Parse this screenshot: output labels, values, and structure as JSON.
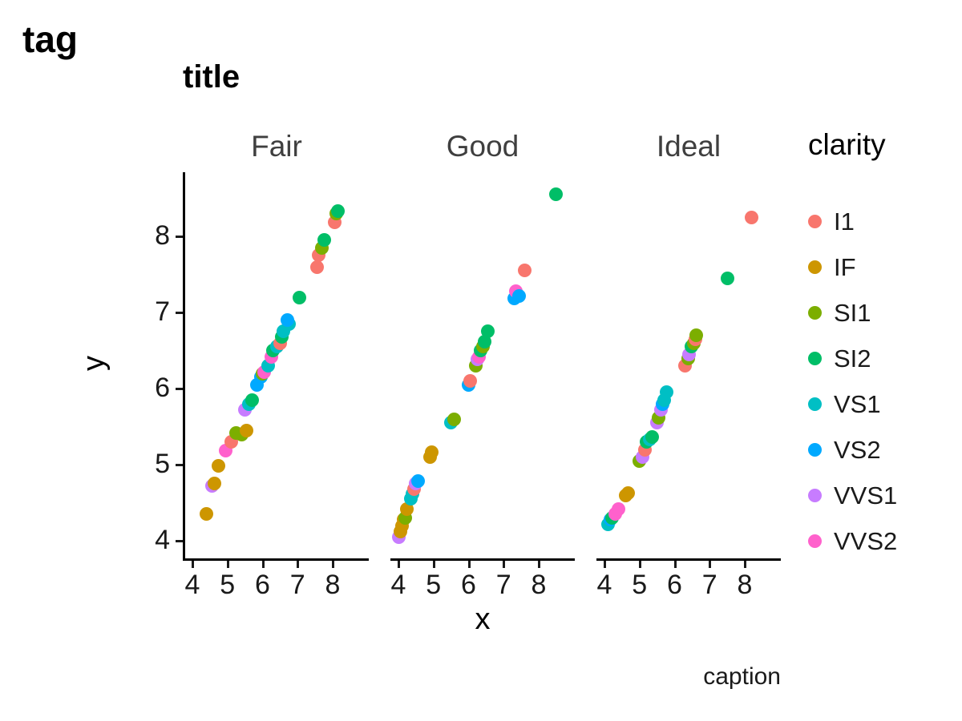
{
  "tag": "tag",
  "title": "title",
  "caption": "caption",
  "axes": {
    "x_label": "x",
    "y_label": "y",
    "x_ticks": [
      4,
      5,
      6,
      7,
      8
    ],
    "y_ticks": [
      4,
      5,
      6,
      7,
      8
    ]
  },
  "legend": {
    "title": "clarity",
    "position": "right",
    "items": [
      {
        "label": "I1",
        "color": "#F8766D"
      },
      {
        "label": "IF",
        "color": "#CD9600"
      },
      {
        "label": "SI1",
        "color": "#7CAE00"
      },
      {
        "label": "SI2",
        "color": "#00BE67"
      },
      {
        "label": "VS1",
        "color": "#00BFC4"
      },
      {
        "label": "VS2",
        "color": "#00A9FF"
      },
      {
        "label": "VVS1",
        "color": "#C77CFF"
      },
      {
        "label": "VVS2",
        "color": "#FF61CC"
      }
    ]
  },
  "chart_data": {
    "type": "scatter",
    "title": "title",
    "xlabel": "x",
    "ylabel": "y",
    "xlim": [
      3.77,
      9.03
    ],
    "ylim": [
      3.77,
      8.84
    ],
    "grid": false,
    "facet_variable_levels": [
      "Fair",
      "Good",
      "Ideal"
    ],
    "series_variable": "clarity",
    "facets": [
      {
        "label": "Fair",
        "points": [
          [
            4.4,
            4.35,
            "IF"
          ],
          [
            4.55,
            4.72,
            "VVS1"
          ],
          [
            4.62,
            4.75,
            "IF"
          ],
          [
            4.75,
            4.98,
            "IF"
          ],
          [
            4.95,
            5.18,
            "VVS2"
          ],
          [
            5.1,
            5.3,
            "I1"
          ],
          [
            5.25,
            5.42,
            "SI1"
          ],
          [
            5.4,
            5.4,
            "SI1"
          ],
          [
            5.55,
            5.45,
            "IF"
          ],
          [
            5.5,
            5.72,
            "VVS1"
          ],
          [
            5.62,
            5.8,
            "VS1"
          ],
          [
            5.7,
            5.85,
            "SI2"
          ],
          [
            5.85,
            6.05,
            "VS2"
          ],
          [
            5.95,
            6.15,
            "VS2"
          ],
          [
            6.0,
            6.2,
            "SI1"
          ],
          [
            6.05,
            6.22,
            "VVS2"
          ],
          [
            6.15,
            6.3,
            "VS1"
          ],
          [
            6.25,
            6.42,
            "VVS2"
          ],
          [
            6.3,
            6.5,
            "SI2"
          ],
          [
            6.4,
            6.55,
            "VS1"
          ],
          [
            6.5,
            6.6,
            "I1"
          ],
          [
            6.55,
            6.68,
            "SI2"
          ],
          [
            6.6,
            6.75,
            "VS1"
          ],
          [
            6.75,
            6.85,
            "VS1"
          ],
          [
            6.7,
            6.9,
            "VS2"
          ],
          [
            7.05,
            7.2,
            "SI2"
          ],
          [
            7.55,
            7.6,
            "I1"
          ],
          [
            7.6,
            7.75,
            "I1"
          ],
          [
            7.7,
            7.85,
            "SI1"
          ],
          [
            7.75,
            7.95,
            "SI2"
          ],
          [
            8.05,
            8.18,
            "I1"
          ],
          [
            8.1,
            8.3,
            "SI1"
          ],
          [
            8.15,
            8.33,
            "SI2"
          ]
        ]
      },
      {
        "label": "Good",
        "points": [
          [
            4.0,
            4.05,
            "VVS1"
          ],
          [
            4.05,
            4.12,
            "IF"
          ],
          [
            4.1,
            4.2,
            "IF"
          ],
          [
            4.15,
            4.28,
            "IF"
          ],
          [
            4.2,
            4.3,
            "SI1"
          ],
          [
            4.25,
            4.42,
            "IF"
          ],
          [
            4.35,
            4.55,
            "VS1"
          ],
          [
            4.4,
            4.62,
            "VS1"
          ],
          [
            4.45,
            4.68,
            "I1"
          ],
          [
            4.5,
            4.75,
            "VVS1"
          ],
          [
            4.55,
            4.78,
            "VS2"
          ],
          [
            4.9,
            5.1,
            "IF"
          ],
          [
            4.95,
            5.16,
            "IF"
          ],
          [
            5.5,
            5.55,
            "VS1"
          ],
          [
            5.58,
            5.6,
            "SI1"
          ],
          [
            6.0,
            6.05,
            "VS2"
          ],
          [
            6.05,
            6.1,
            "I1"
          ],
          [
            6.2,
            6.3,
            "SI1"
          ],
          [
            6.25,
            6.38,
            "VVS1"
          ],
          [
            6.3,
            6.42,
            "VVS2"
          ],
          [
            6.35,
            6.5,
            "SI2"
          ],
          [
            6.4,
            6.55,
            "SI1"
          ],
          [
            6.45,
            6.62,
            "SI2"
          ],
          [
            6.55,
            6.75,
            "SI2"
          ],
          [
            7.3,
            7.18,
            "VS2"
          ],
          [
            7.35,
            7.28,
            "VVS2"
          ],
          [
            7.45,
            7.22,
            "VS2"
          ],
          [
            7.6,
            7.55,
            "I1"
          ],
          [
            8.5,
            8.55,
            "SI2"
          ]
        ]
      },
      {
        "label": "Ideal",
        "points": [
          [
            4.1,
            4.22,
            "VS1"
          ],
          [
            4.18,
            4.28,
            "VS2"
          ],
          [
            4.22,
            4.3,
            "SI2"
          ],
          [
            4.3,
            4.35,
            "VVS2"
          ],
          [
            4.4,
            4.42,
            "VVS2"
          ],
          [
            4.6,
            4.6,
            "IF"
          ],
          [
            4.68,
            4.63,
            "IF"
          ],
          [
            5.0,
            5.05,
            "SI1"
          ],
          [
            5.08,
            5.1,
            "VVS1"
          ],
          [
            5.15,
            5.2,
            "I1"
          ],
          [
            5.2,
            5.3,
            "SI2"
          ],
          [
            5.3,
            5.33,
            "VS1"
          ],
          [
            5.35,
            5.36,
            "SI2"
          ],
          [
            5.5,
            5.55,
            "VVS1"
          ],
          [
            5.55,
            5.62,
            "SI1"
          ],
          [
            5.6,
            5.72,
            "VVS1"
          ],
          [
            5.65,
            5.8,
            "VS2"
          ],
          [
            5.7,
            5.85,
            "VS1"
          ],
          [
            5.78,
            5.95,
            "VS1"
          ],
          [
            6.3,
            6.3,
            "I1"
          ],
          [
            6.38,
            6.4,
            "SI1"
          ],
          [
            6.42,
            6.45,
            "VVS1"
          ],
          [
            6.48,
            6.55,
            "SI2"
          ],
          [
            6.55,
            6.6,
            "SI1"
          ],
          [
            6.6,
            6.65,
            "I1"
          ],
          [
            6.62,
            6.7,
            "SI1"
          ],
          [
            7.5,
            7.45,
            "SI2"
          ],
          [
            8.2,
            8.25,
            "I1"
          ]
        ]
      }
    ]
  }
}
